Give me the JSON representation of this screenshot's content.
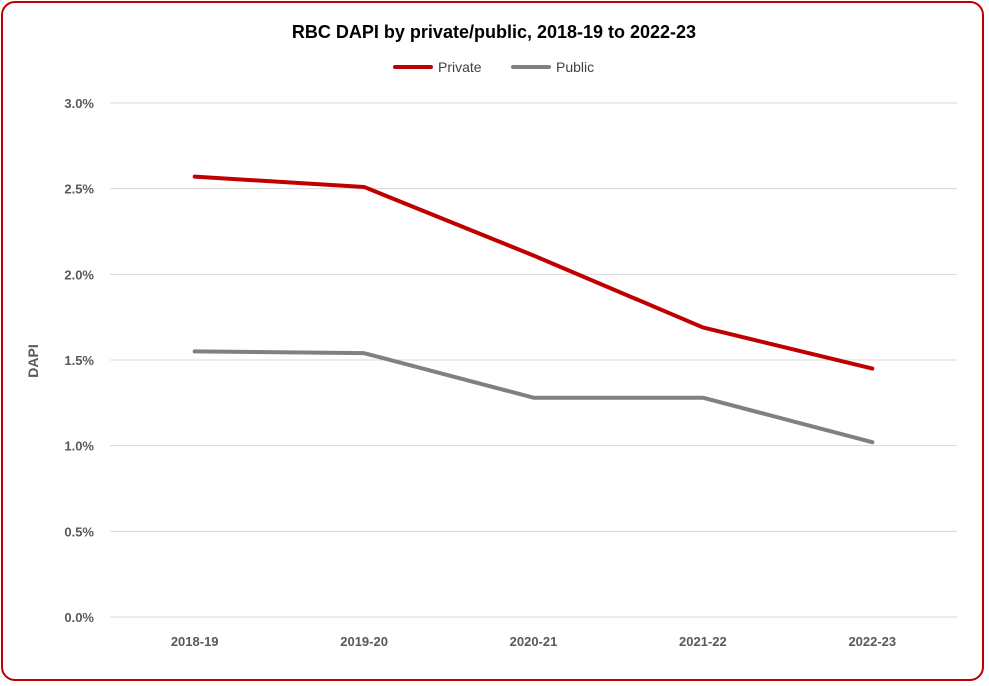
{
  "chart_data": {
    "type": "line",
    "title": "RBC DAPI by private/public, 2018-19 to 2022-23",
    "xlabel": "",
    "ylabel": "DAPI",
    "categories": [
      "2018-19",
      "2019-20",
      "2020-21",
      "2021-22",
      "2022-23"
    ],
    "ylim": [
      0,
      3.0
    ],
    "yticks": [
      0,
      0.5,
      1.0,
      1.5,
      2.0,
      2.5,
      3.0
    ],
    "ytick_labels": [
      "0.0%",
      "0.5%",
      "1.0%",
      "1.5%",
      "2.0%",
      "2.5%",
      "3.0%"
    ],
    "grid": true,
    "legend_position": "top-center",
    "series": [
      {
        "name": "Private",
        "color": "#c00000",
        "values": [
          2.57,
          2.51,
          2.11,
          1.69,
          1.45
        ]
      },
      {
        "name": "Public",
        "color": "#808080",
        "values": [
          1.55,
          1.54,
          1.28,
          1.28,
          1.02
        ]
      }
    ]
  }
}
